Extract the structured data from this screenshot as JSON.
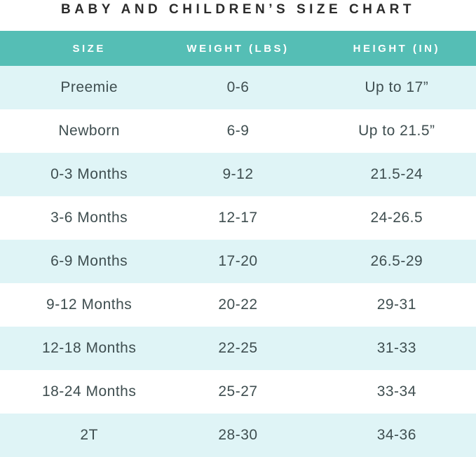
{
  "chart_data": {
    "type": "table",
    "title": "BABY AND CHILDREN’S SIZE CHART",
    "columns": [
      "SIZE",
      "WEIGHT (LBS)",
      "HEIGHT (IN)"
    ],
    "rows": [
      [
        "Preemie",
        "0-6",
        "Up to 17”"
      ],
      [
        "Newborn",
        "6-9",
        "Up to 21.5”"
      ],
      [
        "0-3 Months",
        "9-12",
        "21.5-24"
      ],
      [
        "3-6 Months",
        "12-17",
        "24-26.5"
      ],
      [
        "6-9 Months",
        "17-20",
        "26.5-29"
      ],
      [
        "9-12 Months",
        "20-22",
        "29-31"
      ],
      [
        "12-18 Months",
        "22-25",
        "31-33"
      ],
      [
        "18-24 Months",
        "25-27",
        "33-34"
      ],
      [
        "2T",
        "28-30",
        "34-36"
      ]
    ],
    "layout": {
      "header_position": "top",
      "row_striping": "alternating, first data row shaded",
      "grid": false
    }
  },
  "colors": {
    "header_bg": "#55beb5",
    "header_text": "#ffffff",
    "row_alt_bg": "#dff4f6",
    "row_bg": "#ffffff",
    "cell_text": "#3f4e50",
    "title_text": "#2b2b2b"
  }
}
